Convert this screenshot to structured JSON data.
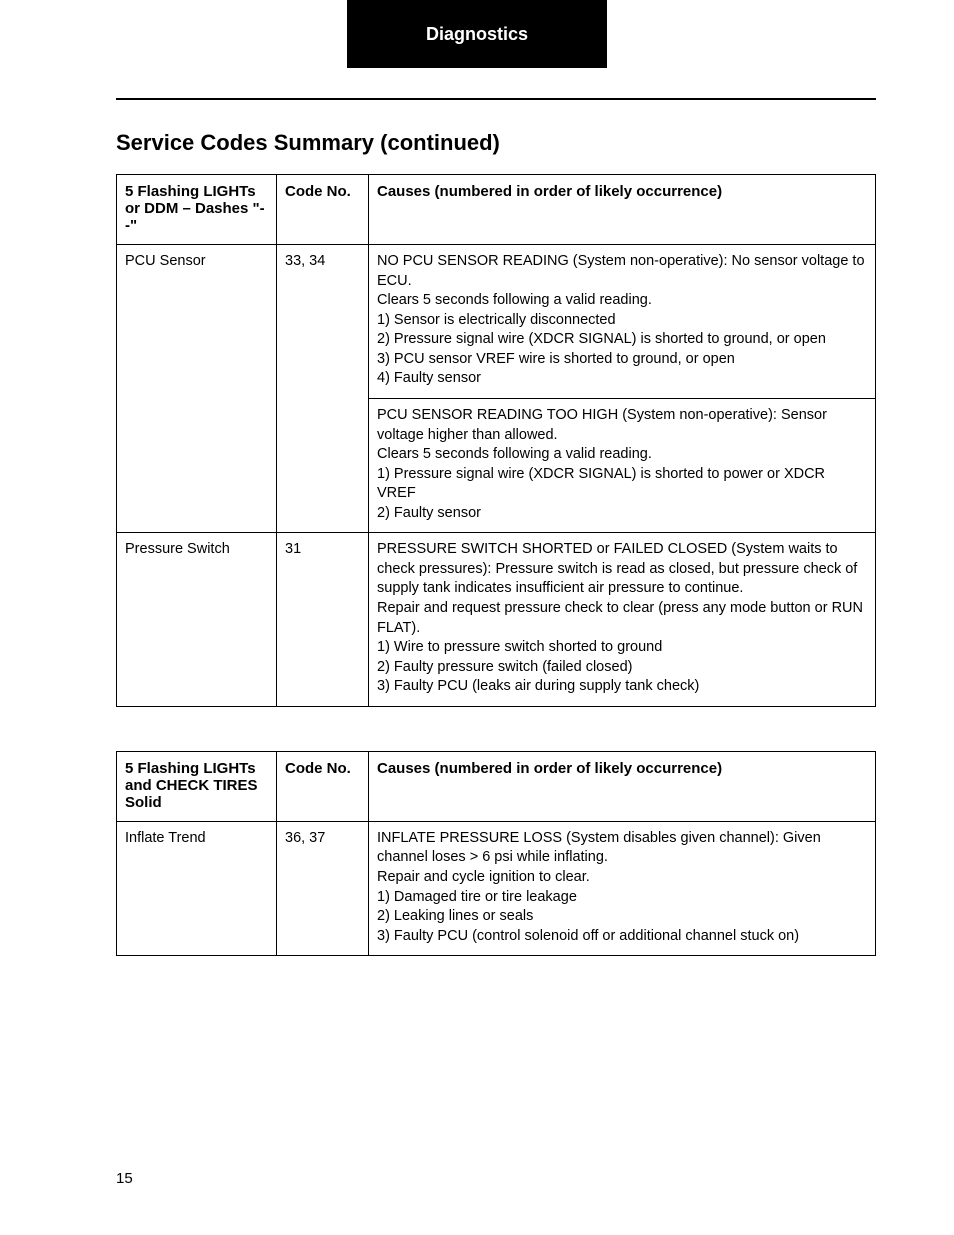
{
  "header": {
    "title": "Diagnostics"
  },
  "section_title": "Service Codes Summary (continued)",
  "table1": {
    "headers": {
      "lights": "5 Flashing LIGHTs or DDM – Dashes \"--\"",
      "code": "Code No.",
      "causes": "Causes (numbered in order of likely occurrence)"
    },
    "rows": [
      {
        "light": "PCU Sensor",
        "code": "33, 34",
        "cause": "NO PCU SENSOR READING (System non-operative): No sensor voltage to ECU.\nClears 5 seconds following a valid reading.\n1) Sensor is electrically disconnected\n2) Pressure signal wire (XDCR SIGNAL) is shorted to ground, or open\n3) PCU sensor VREF wire is shorted to ground, or open\n4) Faulty sensor",
        "continues": true
      },
      {
        "light": "",
        "code": "",
        "cause": "PCU SENSOR READING TOO HIGH (System non-operative): Sensor voltage higher than allowed.\nClears 5 seconds following a valid reading.\n1) Pressure signal wire (XDCR SIGNAL) is shorted to power or XDCR VREF\n2) Faulty sensor",
        "continues": false
      },
      {
        "light": "Pressure Switch",
        "code": "31",
        "cause": "PRESSURE SWITCH SHORTED or FAILED CLOSED (System waits to check pressures): Pressure switch is read as closed, but pressure check of supply tank indicates insufficient air pressure to continue.\nRepair and request pressure check to clear (press any mode button or RUN FLAT).\n1) Wire to pressure switch shorted to ground\n2) Faulty pressure switch (failed closed)\n3) Faulty PCU (leaks air during supply tank check)",
        "continues": false
      }
    ]
  },
  "table2": {
    "headers": {
      "lights": "5 Flashing LIGHTs and CHECK TIRES Solid",
      "code": "Code No.",
      "causes": "Causes (numbered in order of likely occurrence)"
    },
    "rows": [
      {
        "light": "Inflate Trend",
        "code": "36, 37",
        "cause": "INFLATE PRESSURE LOSS (System disables given channel): Given channel loses > 6 psi while inflating.\nRepair and cycle ignition to clear.\n1) Damaged tire or tire leakage\n2) Leaking lines or seals\n3) Faulty PCU (control solenoid off or additional channel stuck on)"
      }
    ]
  },
  "page_number": "15"
}
